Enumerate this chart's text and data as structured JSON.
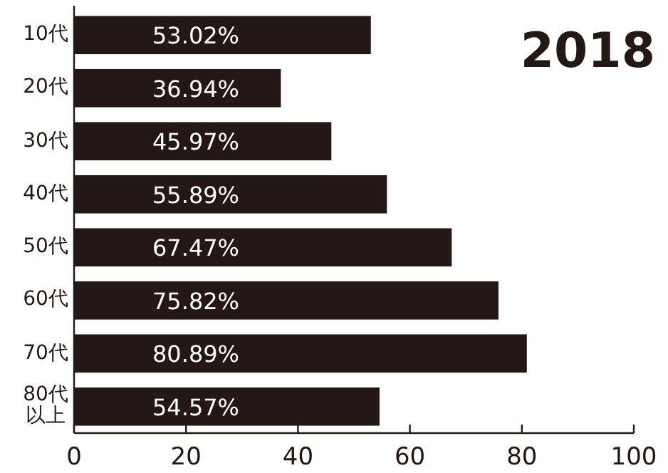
{
  "chart_data": {
    "type": "bar",
    "orientation": "horizontal",
    "title": "2018",
    "categories": [
      "10代",
      "20代",
      "30代",
      "40代",
      "50代",
      "60代",
      "70代",
      "80代以上"
    ],
    "values": [
      53.02,
      36.94,
      45.97,
      55.89,
      67.47,
      75.82,
      80.89,
      54.57
    ],
    "value_labels": [
      "53.02%",
      "36.94%",
      "45.97%",
      "55.89%",
      "67.47%",
      "75.82%",
      "80.89%",
      "54.57%"
    ],
    "color": "#231815",
    "xlim": [
      0,
      100
    ],
    "xticks": [
      0,
      20,
      40,
      60,
      80,
      100
    ],
    "grid": false
  }
}
